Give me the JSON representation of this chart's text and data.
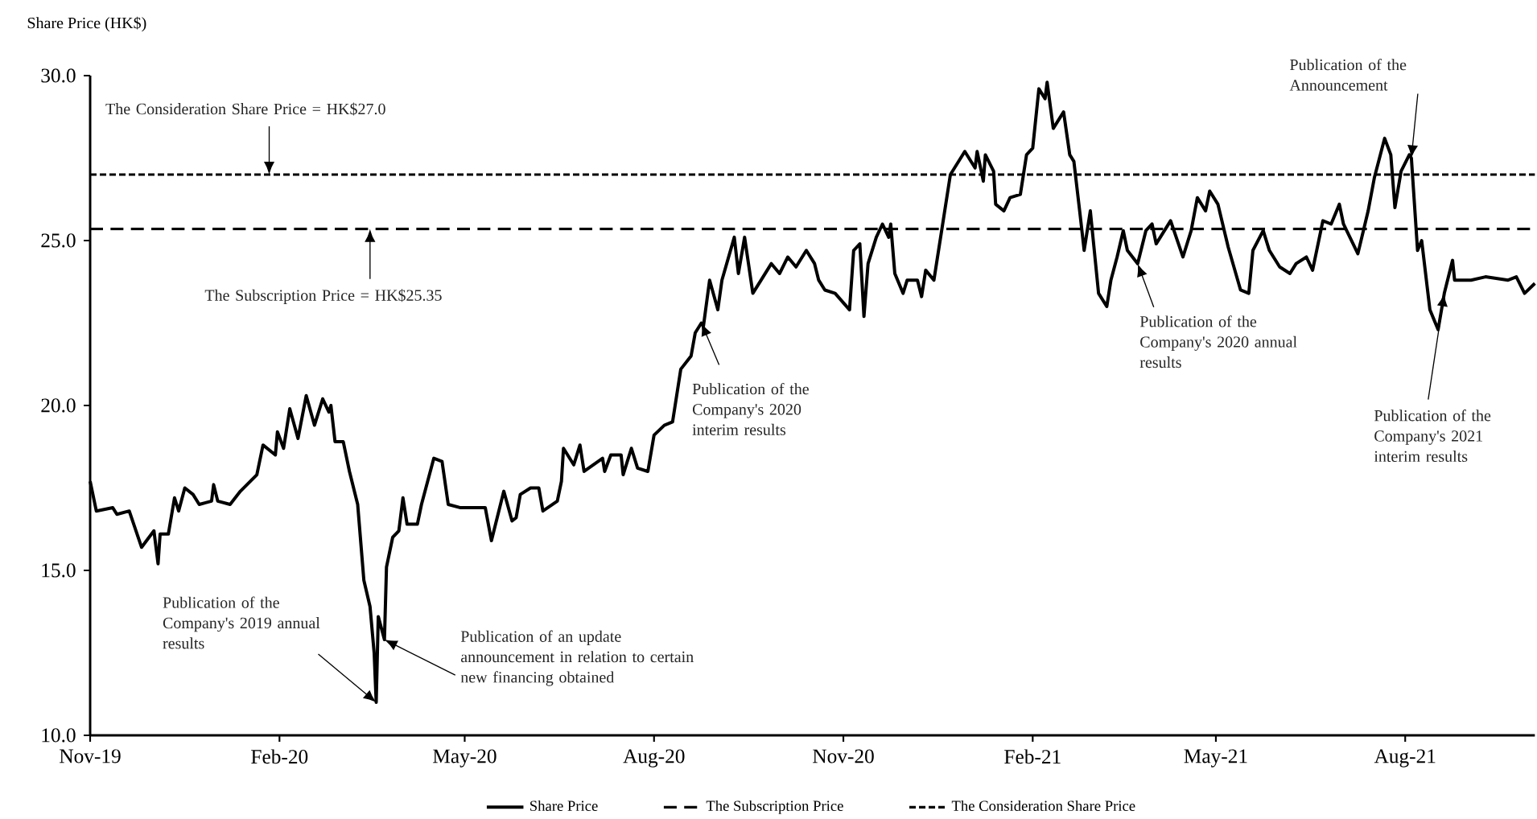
{
  "chart_data": {
    "type": "line",
    "ylabel": "Share Price (HK$)",
    "xlim": [
      "2019-11-01",
      "2021-10-03"
    ],
    "ylim": [
      10,
      30
    ],
    "xticks": [
      {
        "value": "2019-11-01",
        "label": "Nov-19"
      },
      {
        "value": "2020-02-01",
        "label": "Feb-20"
      },
      {
        "value": "2020-05-01",
        "label": "May-20"
      },
      {
        "value": "2020-08-01",
        "label": "Aug-20"
      },
      {
        "value": "2020-11-01",
        "label": "Nov-20"
      },
      {
        "value": "2021-02-01",
        "label": "Feb-21"
      },
      {
        "value": "2021-05-01",
        "label": "May-21"
      },
      {
        "value": "2021-08-01",
        "label": "Aug-21"
      }
    ],
    "yticks": [
      {
        "value": 10,
        "label": "10.0"
      },
      {
        "value": 15,
        "label": "15.0"
      },
      {
        "value": 20,
        "label": "20.0"
      },
      {
        "value": 25,
        "label": "25.0"
      },
      {
        "value": 30,
        "label": "30.0"
      }
    ],
    "grid": false,
    "legend": "bottom",
    "series": [
      {
        "name": "Share Price",
        "color": "#000000",
        "line_style": "solid",
        "x": [
          "2019-11-01",
          "2019-11-04",
          "2019-11-12",
          "2019-11-14",
          "2019-11-20",
          "2019-11-26",
          "2019-12-02",
          "2019-12-04",
          "2019-12-05",
          "2019-12-09",
          "2019-12-12",
          "2019-12-14",
          "2019-12-17",
          "2019-12-21",
          "2019-12-24",
          "2019-12-30",
          "2019-12-31",
          "2020-01-02",
          "2020-01-08",
          "2020-01-13",
          "2020-01-21",
          "2020-01-24",
          "2020-01-30",
          "2020-01-31",
          "2020-02-03",
          "2020-02-06",
          "2020-02-10",
          "2020-02-14",
          "2020-02-18",
          "2020-02-22",
          "2020-02-25",
          "2020-02-26",
          "2020-02-28",
          "2020-03-03",
          "2020-03-06",
          "2020-03-10",
          "2020-03-13",
          "2020-03-16",
          "2020-03-18",
          "2020-03-19",
          "2020-03-20",
          "2020-03-23",
          "2020-03-24",
          "2020-03-27",
          "2020-03-30",
          "2020-04-01",
          "2020-04-03",
          "2020-04-08",
          "2020-04-10",
          "2020-04-16",
          "2020-04-20",
          "2020-04-23",
          "2020-04-29",
          "2020-05-11",
          "2020-05-14",
          "2020-05-20",
          "2020-05-24",
          "2020-05-26",
          "2020-05-28",
          "2020-06-02",
          "2020-06-06",
          "2020-06-08",
          "2020-06-15",
          "2020-06-17",
          "2020-06-18",
          "2020-06-23",
          "2020-06-26",
          "2020-06-28",
          "2020-07-07",
          "2020-07-08",
          "2020-07-11",
          "2020-07-16",
          "2020-07-17",
          "2020-07-21",
          "2020-07-24",
          "2020-07-29",
          "2020-08-01",
          "2020-08-06",
          "2020-08-10",
          "2020-08-12",
          "2020-08-14",
          "2020-08-19",
          "2020-08-21",
          "2020-08-24",
          "2020-08-25",
          "2020-08-28",
          "2020-09-01",
          "2020-09-03",
          "2020-09-09",
          "2020-09-11",
          "2020-09-14",
          "2020-09-18",
          "2020-09-23",
          "2020-09-27",
          "2020-10-01",
          "2020-10-05",
          "2020-10-09",
          "2020-10-14",
          "2020-10-18",
          "2020-10-20",
          "2020-10-23",
          "2020-10-28",
          "2020-11-04",
          "2020-11-06",
          "2020-11-09",
          "2020-11-11",
          "2020-11-13",
          "2020-11-17",
          "2020-11-20",
          "2020-11-23",
          "2020-11-24",
          "2020-11-26",
          "2020-11-30",
          "2020-12-02",
          "2020-12-07",
          "2020-12-09",
          "2020-12-11",
          "2020-12-15",
          "2020-12-19",
          "2020-12-23",
          "2020-12-30",
          "2021-01-04",
          "2021-01-05",
          "2021-01-08",
          "2021-01-09",
          "2021-01-13",
          "2021-01-14",
          "2021-01-18",
          "2021-01-21",
          "2021-01-26",
          "2021-01-29",
          "2021-02-01",
          "2021-02-04",
          "2021-02-07",
          "2021-02-08",
          "2021-02-11",
          "2021-02-16",
          "2021-02-19",
          "2021-02-21",
          "2021-02-24",
          "2021-02-26",
          "2021-03-01",
          "2021-03-05",
          "2021-03-09",
          "2021-03-11",
          "2021-03-14",
          "2021-03-17",
          "2021-03-19",
          "2021-03-24",
          "2021-03-28",
          "2021-03-31",
          "2021-04-02",
          "2021-04-09",
          "2021-04-15",
          "2021-04-19",
          "2021-04-22",
          "2021-04-26",
          "2021-04-28",
          "2021-05-02",
          "2021-05-07",
          "2021-05-13",
          "2021-05-17",
          "2021-05-19",
          "2021-05-24",
          "2021-05-27",
          "2021-06-01",
          "2021-06-06",
          "2021-06-09",
          "2021-06-14",
          "2021-06-17",
          "2021-06-22",
          "2021-06-26",
          "2021-06-30",
          "2021-07-02",
          "2021-07-09",
          "2021-07-14",
          "2021-07-17",
          "2021-07-22",
          "2021-07-25",
          "2021-07-27",
          "2021-07-30",
          "2021-08-03",
          "2021-08-04",
          "2021-08-07",
          "2021-08-09",
          "2021-08-13",
          "2021-08-17",
          "2021-08-20",
          "2021-08-24",
          "2021-08-25",
          "2021-09-02",
          "2021-09-09",
          "2021-09-20",
          "2021-09-24",
          "2021-09-28",
          "2021-10-03"
        ],
        "values": [
          17.7,
          16.8,
          16.9,
          16.7,
          16.8,
          15.7,
          16.2,
          15.2,
          16.1,
          16.1,
          17.2,
          16.8,
          17.5,
          17.3,
          17.0,
          17.1,
          17.6,
          17.1,
          17.0,
          17.4,
          17.9,
          18.8,
          18.5,
          19.2,
          18.7,
          19.9,
          19.0,
          20.3,
          19.4,
          20.2,
          19.8,
          20.0,
          18.9,
          18.9,
          18.0,
          17.0,
          14.7,
          13.9,
          12.5,
          11.0,
          13.6,
          12.9,
          15.1,
          16.0,
          16.2,
          17.2,
          16.4,
          16.4,
          17.0,
          18.4,
          18.3,
          17.0,
          16.9,
          16.9,
          15.9,
          17.4,
          16.5,
          16.6,
          17.3,
          17.5,
          17.5,
          16.8,
          17.1,
          17.7,
          18.7,
          18.2,
          18.8,
          18.0,
          18.4,
          18.0,
          18.5,
          18.5,
          17.9,
          18.7,
          18.1,
          18.0,
          19.1,
          19.4,
          19.5,
          20.3,
          21.1,
          21.5,
          22.2,
          22.5,
          22.4,
          23.8,
          22.9,
          23.8,
          25.1,
          24.0,
          25.1,
          23.4,
          23.9,
          24.3,
          24.0,
          24.5,
          24.2,
          24.7,
          24.3,
          23.8,
          23.5,
          23.4,
          22.9,
          24.7,
          24.9,
          22.7,
          24.3,
          25.1,
          25.5,
          25.1,
          25.5,
          24.0,
          23.4,
          23.8,
          23.8,
          23.3,
          24.1,
          23.8,
          25.4,
          27.0,
          27.7,
          27.2,
          27.7,
          26.8,
          27.6,
          27.1,
          26.1,
          25.9,
          26.3,
          26.4,
          27.6,
          27.8,
          29.6,
          29.3,
          29.8,
          28.4,
          28.9,
          27.6,
          27.4,
          25.8,
          24.7,
          25.9,
          23.4,
          23.0,
          23.8,
          24.5,
          25.3,
          24.7,
          24.3,
          25.3,
          25.5,
          24.9,
          25.6,
          24.5,
          25.3,
          26.3,
          25.9,
          26.5,
          26.1,
          24.8,
          23.5,
          23.4,
          24.7,
          25.3,
          24.7,
          24.2,
          24.0,
          24.3,
          24.5,
          24.1,
          25.6,
          25.5,
          26.1,
          25.5,
          24.6,
          25.9,
          26.9,
          28.1,
          27.6,
          26.0,
          27.1,
          27.6,
          27.5,
          24.7,
          25.0,
          22.9,
          22.3,
          23.4,
          24.4,
          23.8,
          23.8,
          23.9,
          23.8,
          23.9,
          23.4,
          23.7
        ]
      },
      {
        "name": "The Subscription Price",
        "color": "#000000",
        "line_style": "dashed",
        "x": [
          "2019-11-01",
          "2021-10-03"
        ],
        "values": [
          25.35,
          25.35
        ]
      },
      {
        "name": "The Consideration Share Price",
        "color": "#000000",
        "line_style": "dotted",
        "x": [
          "2019-11-01",
          "2021-10-03"
        ],
        "values": [
          27.0,
          27.0
        ]
      }
    ],
    "annotations": [
      {
        "text": "The Consideration Share Price = HK$27.0",
        "x": "2020-01-27",
        "y": 27.0
      },
      {
        "text": "The Subscription Price = HK$25.35",
        "x": "2020-03-16",
        "y": 25.35
      },
      {
        "text": "Publication of the Company's 2019 annual results",
        "x": "2020-03-19",
        "y": 11.0
      },
      {
        "text": "Publication of an update announcement in relation to certain new financing obtained",
        "x": "2020-03-23",
        "y": 12.9
      },
      {
        "text": "Publication of the Company's 2020 interim results",
        "x": "2020-08-24",
        "y": 22.5
      },
      {
        "text": "Publication of the Company's 2020 annual results",
        "x": "2021-03-24",
        "y": 24.3
      },
      {
        "text": "Publication of the Announcement",
        "x": "2021-08-04",
        "y": 27.5
      },
      {
        "text": "Publication of the Company's 2021 interim results",
        "x": "2021-08-20",
        "y": 23.4
      }
    ]
  }
}
